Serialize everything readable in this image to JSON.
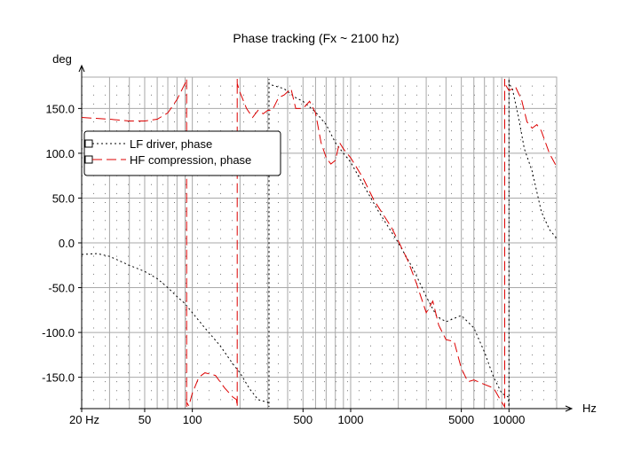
{
  "chart_data": {
    "type": "line",
    "title": "Phase tracking (Fx ~ 2100 hz)",
    "ylabel": "deg",
    "xlabel": "Hz",
    "x_scale": "log",
    "xlim": [
      20,
      20000
    ],
    "ylim": [
      -185,
      185
    ],
    "grid": true,
    "legend_position": "top-left",
    "x_ticks": [
      {
        "v": 20,
        "label": "20 Hz"
      },
      {
        "v": 50,
        "label": "50"
      },
      {
        "v": 100,
        "label": "100"
      },
      {
        "v": 500,
        "label": "500"
      },
      {
        "v": 1000,
        "label": "1000"
      },
      {
        "v": 5000,
        "label": "5000"
      },
      {
        "v": 10000,
        "label": "10000"
      }
    ],
    "y_ticks": [
      {
        "v": 150,
        "label": "150.0"
      },
      {
        "v": 100,
        "label": "100.0"
      },
      {
        "v": 50,
        "label": "50.0"
      },
      {
        "v": 0,
        "label": "0.0"
      },
      {
        "v": -50,
        "label": "-50.0"
      },
      {
        "v": -100,
        "label": "-100.0"
      },
      {
        "v": -150,
        "label": "-150.0"
      }
    ],
    "series": [
      {
        "name": "LF driver, phase",
        "color": "#000000",
        "style": "dotted",
        "points": [
          [
            20,
            -13
          ],
          [
            25,
            -12
          ],
          [
            30,
            -15
          ],
          [
            40,
            -25
          ],
          [
            50,
            -32
          ],
          [
            60,
            -40
          ],
          [
            70,
            -50
          ],
          [
            80,
            -60
          ],
          [
            90,
            -68
          ],
          [
            100,
            -78
          ],
          [
            120,
            -95
          ],
          [
            150,
            -115
          ],
          [
            180,
            -135
          ],
          [
            200,
            -145
          ],
          [
            230,
            -163
          ],
          [
            260,
            -175
          ],
          [
            300,
            -178
          ],
          [
            305,
            178
          ],
          [
            320,
            176
          ],
          [
            380,
            172
          ],
          [
            450,
            162
          ],
          [
            500,
            158
          ],
          [
            600,
            146
          ],
          [
            700,
            132
          ],
          [
            800,
            112
          ],
          [
            900,
            100
          ],
          [
            1000,
            90
          ],
          [
            1200,
            65
          ],
          [
            1500,
            35
          ],
          [
            2000,
            0
          ],
          [
            2500,
            -30
          ],
          [
            3000,
            -60
          ],
          [
            3500,
            -82
          ],
          [
            4000,
            -88
          ],
          [
            5000,
            -81
          ],
          [
            6000,
            -95
          ],
          [
            7000,
            -122
          ],
          [
            8000,
            -150
          ],
          [
            9000,
            -168
          ],
          [
            9900,
            -172
          ],
          [
            10000,
            178
          ],
          [
            10500,
            172
          ],
          [
            11500,
            140
          ],
          [
            12500,
            105
          ],
          [
            14000,
            80
          ],
          [
            16000,
            35
          ],
          [
            18000,
            15
          ],
          [
            20000,
            5
          ]
        ]
      },
      {
        "name": "HF compression, phase",
        "color": "#dd0000",
        "style": "dashed",
        "points": [
          [
            20,
            140
          ],
          [
            30,
            138
          ],
          [
            40,
            136
          ],
          [
            50,
            136
          ],
          [
            60,
            138
          ],
          [
            70,
            145
          ],
          [
            80,
            160
          ],
          [
            90,
            178
          ],
          [
            92,
            -178
          ],
          [
            95,
            -182
          ],
          [
            100,
            -168
          ],
          [
            110,
            -150
          ],
          [
            120,
            -145
          ],
          [
            140,
            -148
          ],
          [
            160,
            -162
          ],
          [
            180,
            -172
          ],
          [
            190,
            -175
          ],
          [
            192,
            178
          ],
          [
            200,
            168
          ],
          [
            220,
            150
          ],
          [
            240,
            140
          ],
          [
            260,
            148
          ],
          [
            280,
            144
          ],
          [
            300,
            148
          ],
          [
            320,
            148
          ],
          [
            350,
            162
          ],
          [
            380,
            165
          ],
          [
            420,
            172
          ],
          [
            450,
            150
          ],
          [
            500,
            150
          ],
          [
            550,
            158
          ],
          [
            600,
            145
          ],
          [
            650,
            112
          ],
          [
            700,
            95
          ],
          [
            750,
            88
          ],
          [
            800,
            92
          ],
          [
            850,
            112
          ],
          [
            900,
            105
          ],
          [
            1000,
            95
          ],
          [
            1200,
            72
          ],
          [
            1400,
            48
          ],
          [
            1600,
            32
          ],
          [
            1800,
            18
          ],
          [
            2000,
            2
          ],
          [
            2300,
            -20
          ],
          [
            2600,
            -45
          ],
          [
            3000,
            -78
          ],
          [
            3300,
            -65
          ],
          [
            3600,
            -92
          ],
          [
            4000,
            -108
          ],
          [
            4500,
            -110
          ],
          [
            5000,
            -140
          ],
          [
            5500,
            -155
          ],
          [
            6000,
            -153
          ],
          [
            7000,
            -158
          ],
          [
            8000,
            -162
          ],
          [
            9000,
            -178
          ],
          [
            9400,
            178
          ],
          [
            10000,
            170
          ],
          [
            11000,
            174
          ],
          [
            12000,
            160
          ],
          [
            13000,
            135
          ],
          [
            14000,
            128
          ],
          [
            15000,
            132
          ],
          [
            16000,
            125
          ],
          [
            18000,
            100
          ],
          [
            20000,
            85
          ]
        ]
      }
    ]
  }
}
